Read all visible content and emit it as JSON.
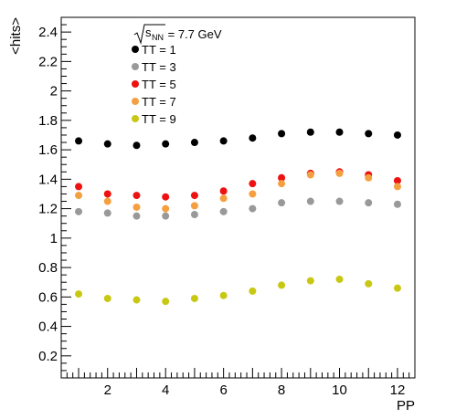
{
  "chart_data": {
    "type": "scatter",
    "xlabel": "PP",
    "ylabel": "<hits>",
    "xlim": [
      0.4,
      12.6
    ],
    "ylim": [
      0.05,
      2.5
    ],
    "x_ticks": [
      2,
      4,
      6,
      8,
      10,
      12
    ],
    "y_ticks": [
      0.2,
      0.4,
      0.6,
      0.8,
      1,
      1.2,
      1.4,
      1.6,
      1.8,
      2,
      2.2,
      2.4
    ],
    "y_tick_labels": [
      "0.2",
      "0.4",
      "0.6",
      "0.8",
      "1",
      "1.2",
      "1.4",
      "1.6",
      "1.8",
      "2",
      "2.2",
      "2.4"
    ],
    "legend_position": "top-left",
    "legend_header_sqrt": "s",
    "legend_header_sub": "NN",
    "legend_header_text": " = 7.7 GeV",
    "x": [
      1,
      2,
      3,
      4,
      5,
      6,
      7,
      8,
      9,
      10,
      11,
      12
    ],
    "series": [
      {
        "name": "TT = 1",
        "color": "#000000",
        "values": [
          1.66,
          1.64,
          1.63,
          1.64,
          1.65,
          1.66,
          1.68,
          1.71,
          1.72,
          1.72,
          1.71,
          1.7
        ]
      },
      {
        "name": "TT = 3",
        "color": "#999999",
        "values": [
          1.18,
          1.17,
          1.15,
          1.15,
          1.16,
          1.18,
          1.2,
          1.24,
          1.25,
          1.25,
          1.24,
          1.23
        ]
      },
      {
        "name": "TT = 5",
        "color": "#ee1111",
        "values": [
          1.35,
          1.3,
          1.29,
          1.28,
          1.29,
          1.32,
          1.37,
          1.41,
          1.44,
          1.45,
          1.43,
          1.39
        ]
      },
      {
        "name": "TT = 7",
        "color": "#f4a040",
        "values": [
          1.29,
          1.25,
          1.21,
          1.2,
          1.22,
          1.27,
          1.3,
          1.37,
          1.43,
          1.44,
          1.41,
          1.35
        ]
      },
      {
        "name": "TT = 9",
        "color": "#c8c814",
        "values": [
          0.62,
          0.59,
          0.58,
          0.57,
          0.59,
          0.61,
          0.64,
          0.68,
          0.71,
          0.72,
          0.69,
          0.66
        ]
      }
    ]
  }
}
